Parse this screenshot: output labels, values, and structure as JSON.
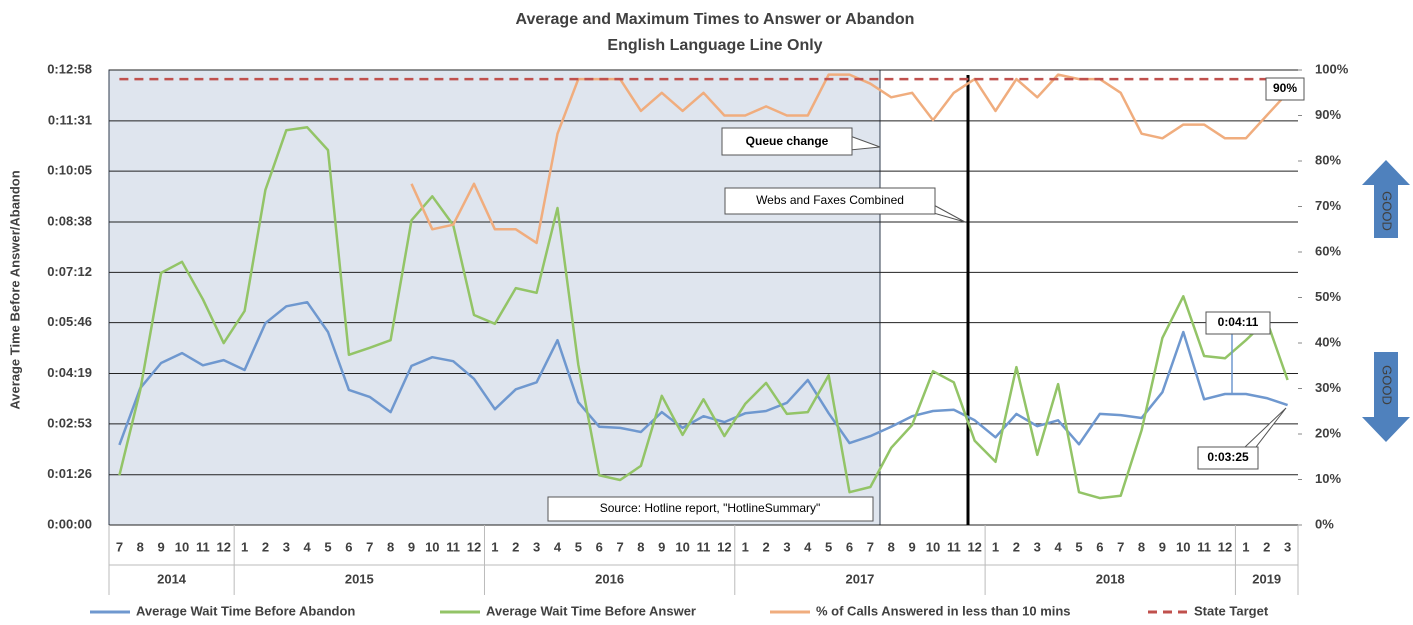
{
  "chart_data": {
    "type": "line",
    "title": "Average and Maximum Times to Answer or Abandon",
    "subtitle": "English Language Line Only",
    "ylabel": "Average Time Before Answer/Abandon",
    "groups": [
      {
        "label": "2014",
        "categories": [
          "7",
          "8",
          "9",
          "10",
          "11",
          "12"
        ]
      },
      {
        "label": "2015",
        "categories": [
          "1",
          "2",
          "3",
          "4",
          "5",
          "6",
          "7",
          "8",
          "9",
          "10",
          "11",
          "12"
        ]
      },
      {
        "label": "2016",
        "categories": [
          "1",
          "2",
          "3",
          "4",
          "5",
          "6",
          "7",
          "8",
          "9",
          "10",
          "11",
          "12"
        ]
      },
      {
        "label": "2017",
        "categories": [
          "1",
          "2",
          "3",
          "4",
          "5",
          "6",
          "7",
          "8",
          "9",
          "10",
          "11",
          "12"
        ]
      },
      {
        "label": "2018",
        "categories": [
          "1",
          "2",
          "3",
          "4",
          "5",
          "6",
          "7",
          "8",
          "9",
          "10",
          "11",
          "12"
        ]
      },
      {
        "label": "2019",
        "categories": [
          "1",
          "2",
          "3"
        ]
      }
    ],
    "ylim": [
      0,
      778
    ],
    "yticks": [
      {
        "value": 0,
        "label": "0:00:00"
      },
      {
        "value": 86,
        "label": "0:01:26"
      },
      {
        "value": 173,
        "label": "0:02:53"
      },
      {
        "value": 259,
        "label": "0:04:19"
      },
      {
        "value": 346,
        "label": "0:05:46"
      },
      {
        "value": 432,
        "label": "0:07:12"
      },
      {
        "value": 518,
        "label": "0:08:38"
      },
      {
        "value": 605,
        "label": "0:10:05"
      },
      {
        "value": 691,
        "label": "0:11:31"
      },
      {
        "value": 778,
        "label": "0:12:58"
      }
    ],
    "y2lim": [
      0,
      100
    ],
    "y2ticks": [
      {
        "value": 0,
        "label": "0%"
      },
      {
        "value": 10,
        "label": "10%"
      },
      {
        "value": 20,
        "label": "20%"
      },
      {
        "value": 30,
        "label": "30%"
      },
      {
        "value": 40,
        "label": "40%"
      },
      {
        "value": 50,
        "label": "50%"
      },
      {
        "value": 60,
        "label": "60%"
      },
      {
        "value": 70,
        "label": "70%"
      },
      {
        "value": 80,
        "label": "80%"
      },
      {
        "value": 90,
        "label": "90%"
      },
      {
        "value": 100,
        "label": "100%"
      }
    ],
    "grid": true,
    "legend": "bottom",
    "series": [
      {
        "name": "Average Wait Time Before Abandon",
        "color": "#6f98cf",
        "values": [
          137,
          234,
          277,
          294,
          273,
          282,
          265,
          345,
          374,
          381,
          330,
          231,
          219,
          193,
          272,
          287,
          280,
          250,
          198,
          232,
          244,
          316,
          210,
          168,
          166,
          159,
          193,
          166,
          186,
          176,
          191,
          195,
          209,
          248,
          191,
          140,
          152,
          168,
          186,
          195,
          197,
          179,
          150,
          190,
          169,
          179,
          138,
          190,
          188,
          183,
          227,
          330,
          215,
          224,
          224,
          217,
          205
        ]
      },
      {
        "name": "Average Wait Time Before Answer",
        "color": "#93c467",
        "values": [
          85,
          231,
          431,
          450,
          386,
          311,
          366,
          573,
          675,
          680,
          641,
          291,
          303,
          316,
          521,
          562,
          513,
          359,
          344,
          405,
          397,
          542,
          274,
          85,
          77,
          101,
          221,
          154,
          215,
          152,
          207,
          243,
          190,
          193,
          256,
          56,
          65,
          132,
          171,
          263,
          244,
          144,
          108,
          270,
          120,
          241,
          56,
          46,
          50,
          162,
          320,
          391,
          289,
          285,
          316,
          350,
          248
        ]
      },
      {
        "name": "% of Calls Answered in less than 10 mins",
        "color": "#f0ad7e",
        "axis": "y2",
        "values": [
          null,
          null,
          null,
          null,
          null,
          null,
          null,
          null,
          null,
          null,
          null,
          null,
          null,
          null,
          75,
          65,
          66,
          75,
          65,
          65,
          62,
          86,
          98,
          98,
          98,
          91,
          95,
          91,
          95,
          90,
          90,
          92,
          90,
          90,
          99,
          99,
          97,
          94,
          95,
          89,
          95,
          98,
          91,
          98,
          94,
          99,
          98,
          98,
          95,
          86,
          85,
          88,
          88,
          85,
          85,
          90,
          95
        ]
      },
      {
        "name": "State Target",
        "color": "#c0504d",
        "axis": "y2",
        "dashed": true,
        "values": [
          98,
          98,
          98,
          98,
          98,
          98,
          98,
          98,
          98,
          98,
          98,
          98,
          98,
          98,
          98,
          98,
          98,
          98,
          98,
          98,
          98,
          98,
          98,
          98,
          98,
          98,
          98,
          98,
          98,
          98,
          98,
          98,
          98,
          98,
          98,
          98,
          98,
          98,
          98,
          98,
          98,
          98,
          98,
          98,
          98,
          98,
          98,
          98,
          98,
          98,
          98,
          98,
          98,
          98,
          98,
          98,
          98
        ]
      }
    ],
    "annotations": [
      "Queue change",
      "Webs and Faxes Combined",
      "Source: Hotline report, \"HotlineSummary\"",
      "90%",
      "0:04:11",
      "0:03:25",
      "GOOD",
      "GOOD"
    ]
  }
}
